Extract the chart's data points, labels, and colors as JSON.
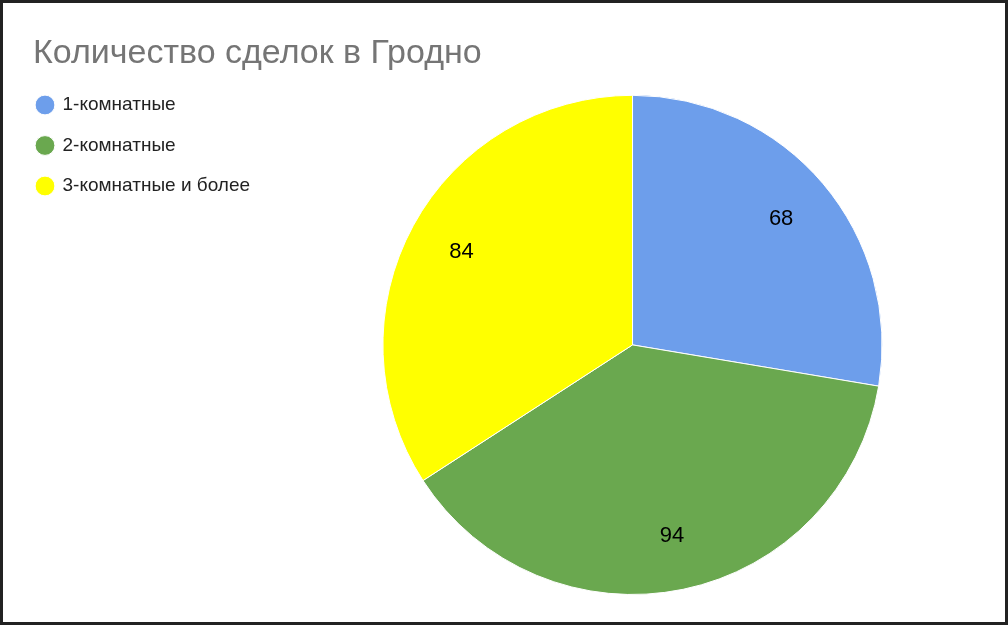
{
  "chart_data": {
    "type": "pie",
    "title": "Количество сделок в Гродно",
    "categories": [
      "1-комнатные",
      "2-комнатные",
      "3-комнатные и более"
    ],
    "values": [
      68,
      94,
      84
    ],
    "colors": [
      "#6d9eeb",
      "#6aa84f",
      "#ffff00"
    ],
    "data_labels": true,
    "legend": "top left"
  }
}
